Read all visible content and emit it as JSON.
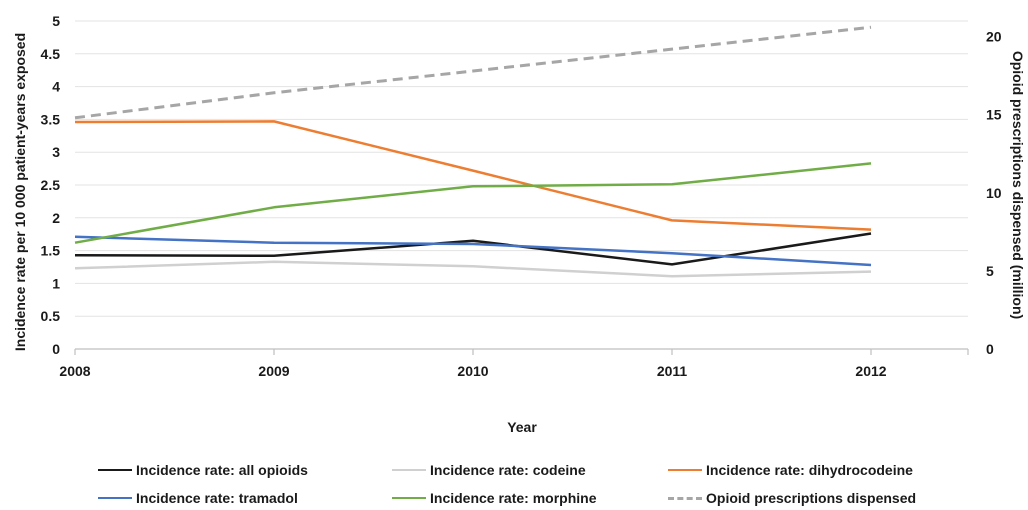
{
  "chart_data": {
    "type": "line",
    "x": [
      2008,
      2009,
      2010,
      2011,
      2012
    ],
    "xlabel": "Year",
    "ylabel": "Incidence rate per 10 000 patient-years exposed",
    "y2label": "Opioid prescriptions dispensed (million)",
    "ylim": [
      0,
      5
    ],
    "y2lim": [
      0,
      21
    ],
    "yticks": [
      "0",
      "0.5",
      "1",
      "1.5",
      "2",
      "2.5",
      "3",
      "3.5",
      "4",
      "4.5",
      "5"
    ],
    "y2ticks": [
      "0",
      "5",
      "10",
      "15",
      "20"
    ],
    "xticks": [
      "2008",
      "2009",
      "2010",
      "2011",
      "2012"
    ],
    "grid": true,
    "legend_position": "bottom",
    "series": [
      {
        "name": "Incidence rate: all opioids",
        "axis": "left",
        "color": "#1a1a1a",
        "dash": false,
        "values": [
          1.43,
          1.42,
          1.65,
          1.29,
          1.76
        ]
      },
      {
        "name": "Incidence rate: codeine",
        "axis": "left",
        "color": "#d0d0d0",
        "dash": false,
        "values": [
          1.23,
          1.33,
          1.26,
          1.11,
          1.18
        ]
      },
      {
        "name": "Incidence rate: dihydrocodeine",
        "axis": "left",
        "color": "#ed7d31",
        "dash": false,
        "values": [
          3.46,
          3.47,
          2.72,
          1.96,
          1.82
        ]
      },
      {
        "name": "Incidence rate: tramadol",
        "axis": "left",
        "color": "#4472c4",
        "dash": false,
        "values": [
          1.71,
          1.62,
          1.6,
          1.46,
          1.28
        ]
      },
      {
        "name": "Incidence rate: morphine",
        "axis": "left",
        "color": "#70ad47",
        "dash": false,
        "values": [
          1.62,
          2.16,
          2.48,
          2.51,
          2.83
        ]
      },
      {
        "name": "Opioid prescriptions dispensed",
        "axis": "right",
        "color": "#a6a6a6",
        "dash": true,
        "values": [
          14.8,
          16.4,
          17.8,
          19.2,
          20.6
        ]
      }
    ]
  }
}
